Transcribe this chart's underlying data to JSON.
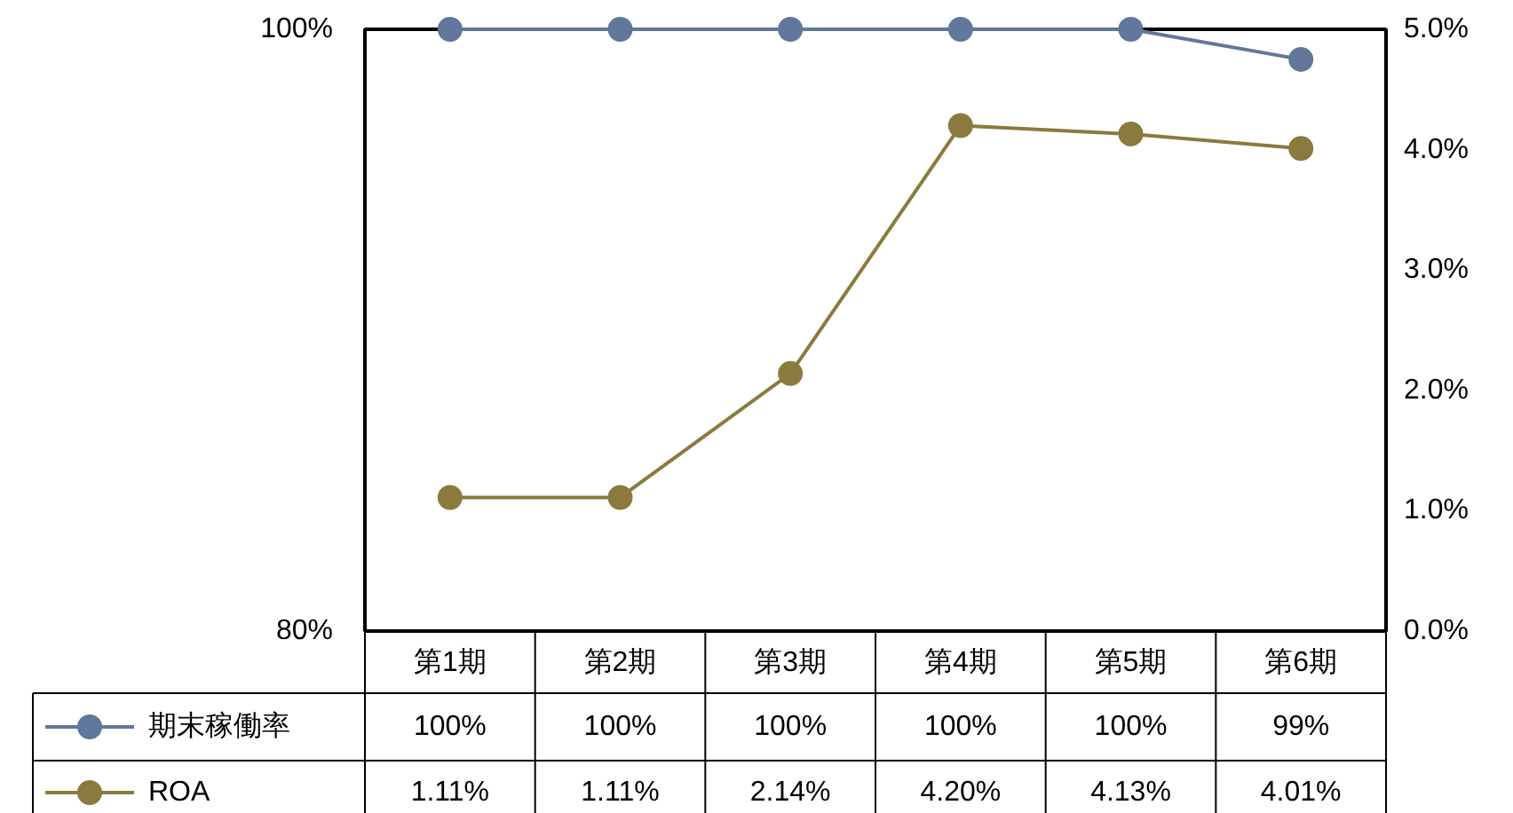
{
  "chart_data": {
    "type": "line",
    "categories": [
      "第1期",
      "第2期",
      "第3期",
      "第4期",
      "第5期",
      "第6期"
    ],
    "series": [
      {
        "name": "期末稼働率",
        "color": "#61779b",
        "values": [
          100,
          100,
          100,
          100,
          100,
          99
        ],
        "value_labels": [
          "100%",
          "100%",
          "100%",
          "100%",
          "100%",
          "99%"
        ]
      },
      {
        "name": "ROA",
        "color": "#8b7a3e",
        "axis": "y2",
        "values": [
          1.11,
          1.11,
          2.14,
          4.2,
          4.13,
          4.01
        ],
        "value_labels": [
          "1.11%",
          "1.11%",
          "2.14%",
          "4.20%",
          "4.13%",
          "4.01%"
        ]
      }
    ],
    "ylim": [
      80,
      100
    ],
    "yticks": [
      {
        "value": 80,
        "label": "80%"
      },
      {
        "value": 100,
        "label": "100%"
      }
    ],
    "y2lim": [
      0,
      5
    ],
    "y2ticks": [
      {
        "value": 0,
        "label": "0.0%"
      },
      {
        "value": 1,
        "label": "1.0%"
      },
      {
        "value": 2,
        "label": "2.0%"
      },
      {
        "value": 3,
        "label": "3.0%"
      },
      {
        "value": 4,
        "label": "4.0%"
      },
      {
        "value": 5,
        "label": "5.0%"
      }
    ],
    "marker": "circle",
    "grid": false,
    "legend": "bottom"
  }
}
